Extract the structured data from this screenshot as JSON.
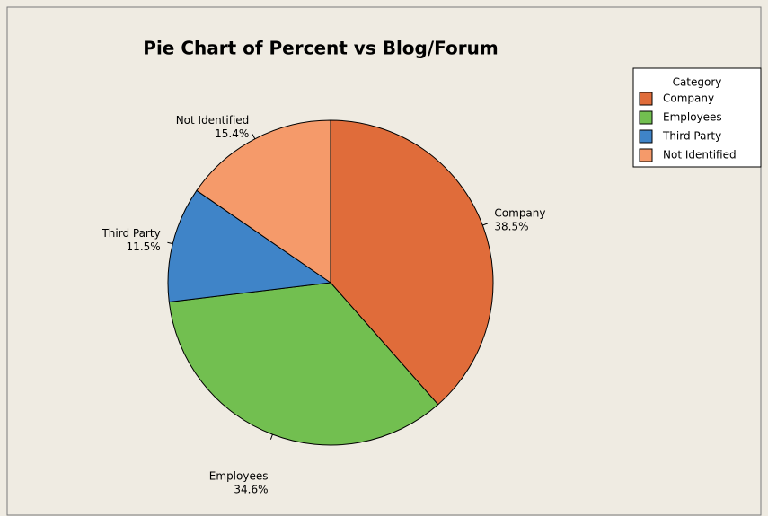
{
  "chart_data": {
    "type": "pie",
    "title": "Pie Chart of Percent vs Blog/Forum",
    "legend_title": "Category",
    "legend": "top-right",
    "categories": [
      "Company",
      "Employees",
      "Third Party",
      "Not Identified"
    ],
    "values": [
      38.5,
      34.6,
      11.5,
      15.4
    ],
    "value_labels": [
      "38.5%",
      "34.6%",
      "11.5%",
      "15.4%"
    ],
    "colors": [
      "#e06c3a",
      "#72bf50",
      "#3f84c8",
      "#f59a6a"
    ]
  }
}
